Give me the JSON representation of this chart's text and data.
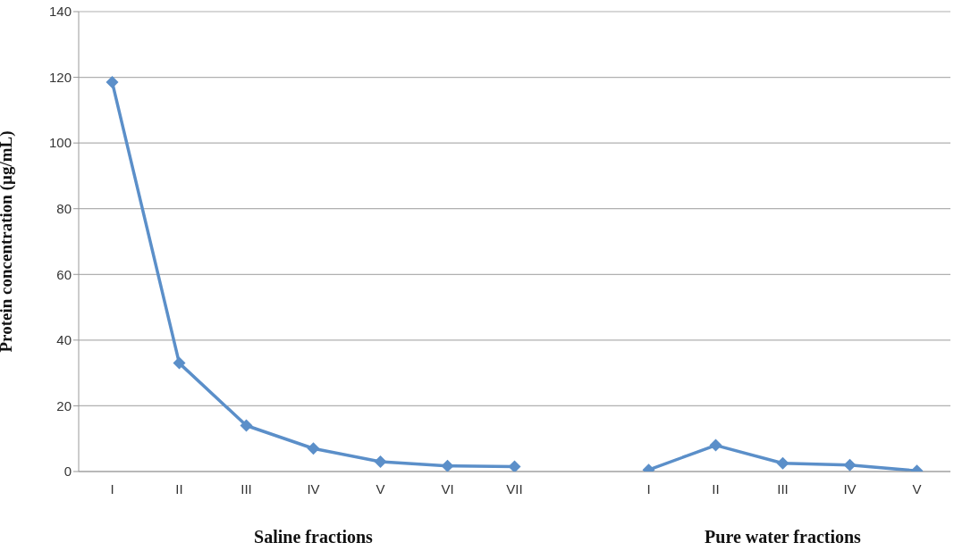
{
  "chart_data": {
    "type": "line",
    "ylabel": "Protein concentration (µg/mL)",
    "categories": [
      "I",
      "II",
      "III",
      "IV",
      "V",
      "VI",
      "VII",
      null,
      "I",
      "II",
      "III",
      "IV",
      "V"
    ],
    "values": [
      118.5,
      33,
      14,
      7,
      3,
      1.7,
      1.5,
      null,
      0.5,
      8,
      2.5,
      2,
      0.2
    ],
    "color": "#5b8fc9",
    "marker": "diamond",
    "ylim": [
      0,
      140
    ],
    "yticks": [
      0,
      20,
      40,
      60,
      80,
      100,
      120,
      140
    ],
    "grid": "y",
    "annotations": [
      "Saline fractions",
      "Pure water fractions"
    ]
  }
}
